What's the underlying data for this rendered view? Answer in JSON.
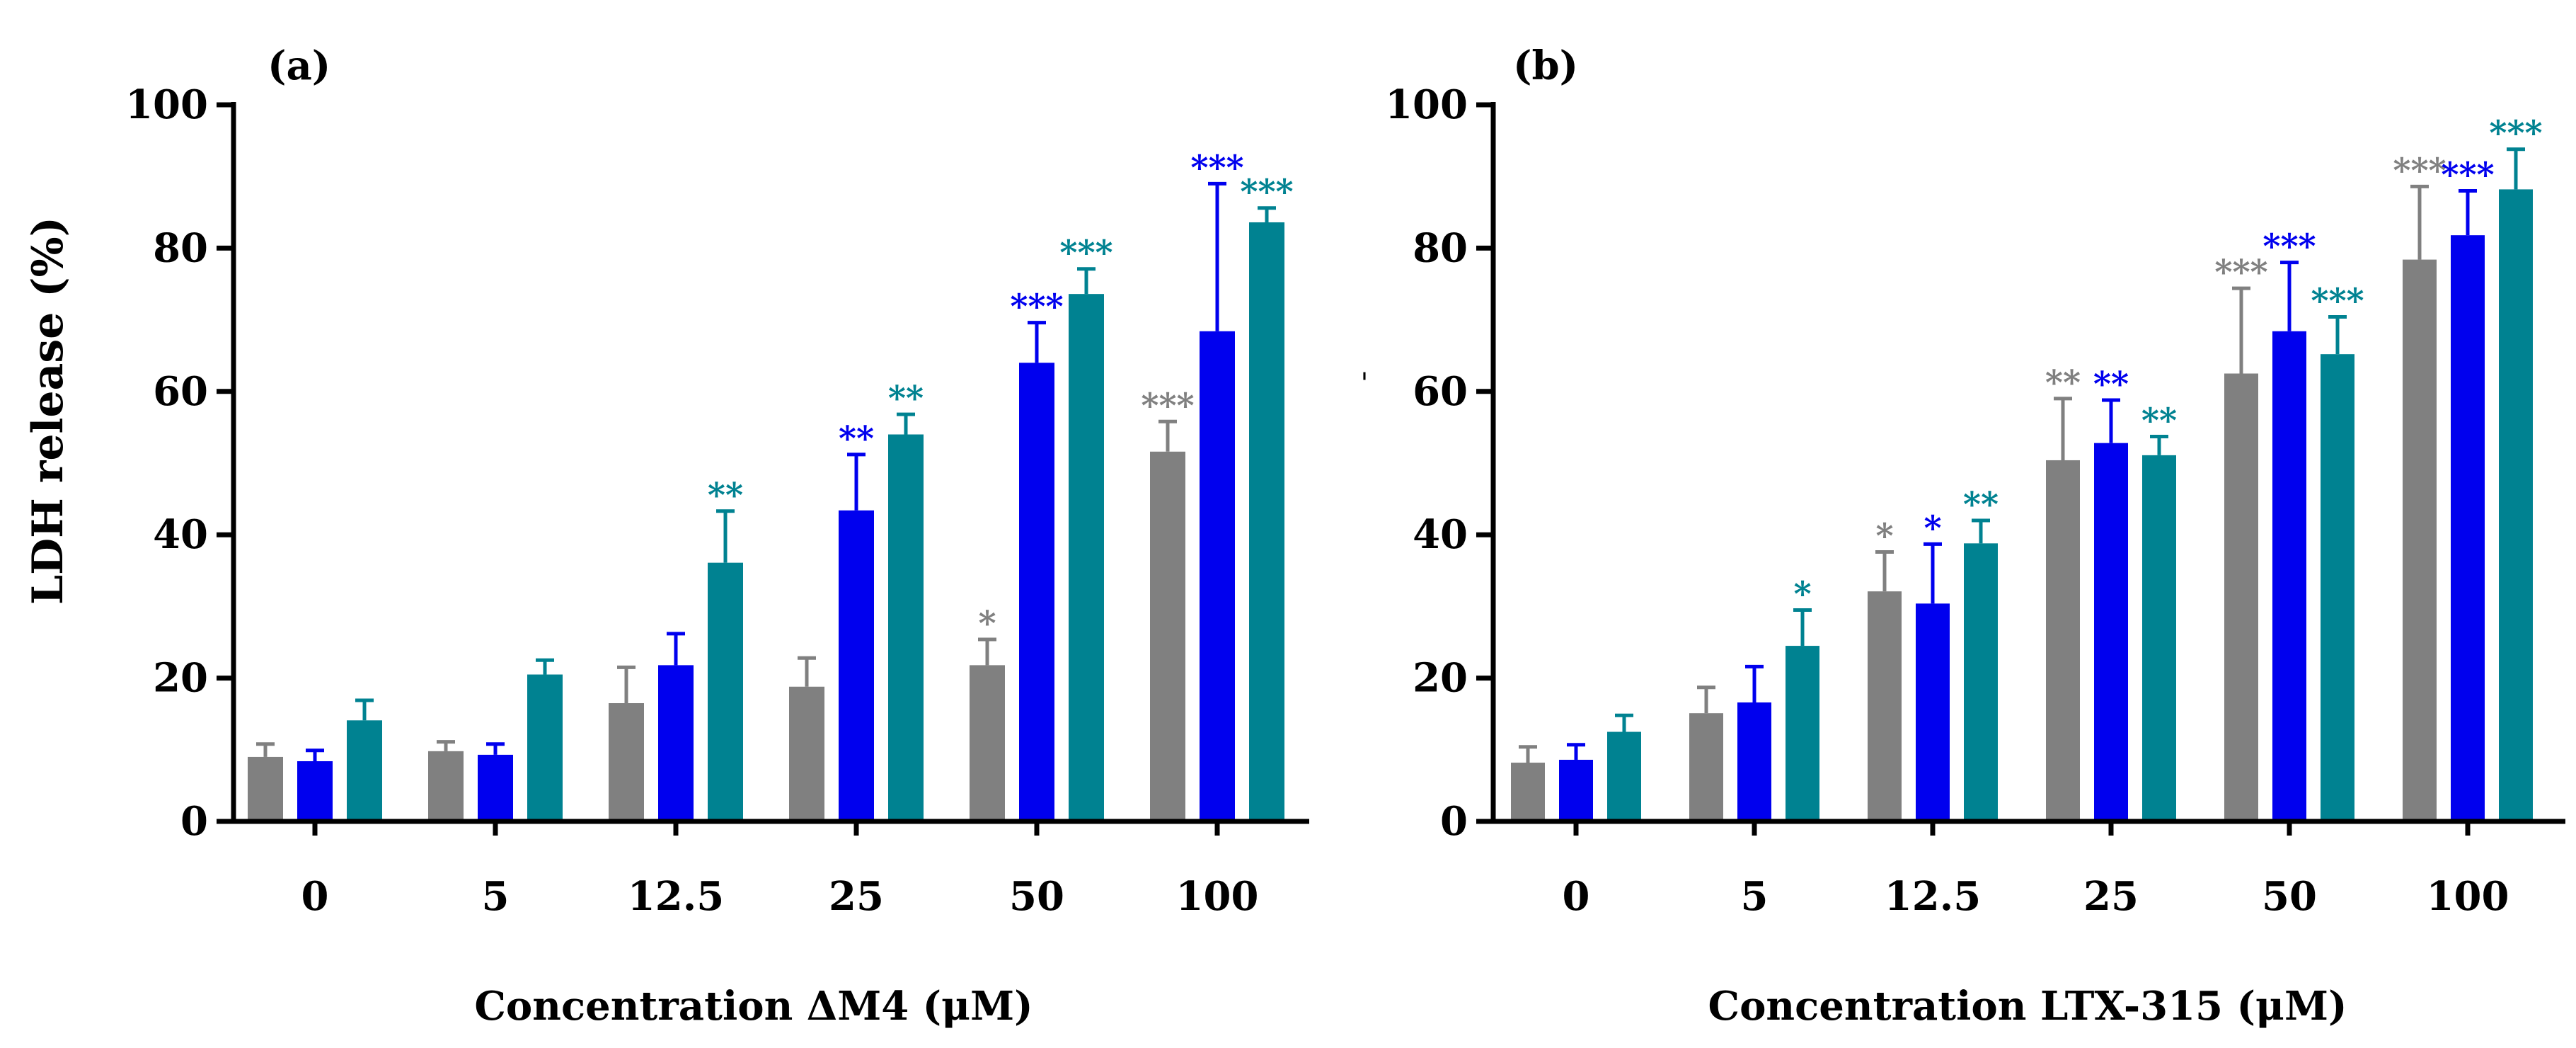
{
  "colors": {
    "series1": "#808080",
    "series2": "#0000EE",
    "series3": "#008291",
    "axis": "#000000"
  },
  "shared": {
    "ylabel": "LDH release (%)"
  },
  "chart_data": [
    {
      "type": "bar",
      "panel_label": "(a)",
      "xlabel": "Concentration ΔM4 (μM)",
      "ylabel": "LDH release (%)",
      "ylim": [
        0,
        100
      ],
      "yticks": [
        "0",
        "20",
        "40",
        "60",
        "80",
        "100"
      ],
      "categories": [
        "0",
        "5",
        "12.5",
        "25",
        "50",
        "100"
      ],
      "stray_marks": [],
      "series": [
        {
          "color_key": "series1",
          "values": [
            9,
            9.8,
            16.5,
            18.8,
            21.8,
            51.6
          ],
          "errors": [
            1.8,
            1.3,
            5,
            4,
            3.6,
            4.2
          ],
          "sig": [
            "",
            "",
            "",
            "",
            "*",
            "***"
          ]
        },
        {
          "color_key": "series2",
          "values": [
            8.4,
            9.3,
            21.8,
            43.4,
            64,
            68.4
          ],
          "errors": [
            1.5,
            1.5,
            4.4,
            7.8,
            5.6,
            20.6
          ],
          "sig": [
            "",
            "",
            "",
            "**",
            "***",
            "***"
          ]
        },
        {
          "color_key": "series3",
          "values": [
            14.1,
            20.5,
            36.1,
            54,
            73.6,
            83.6
          ],
          "errors": [
            2.8,
            2,
            7.2,
            2.8,
            3.5,
            2
          ],
          "sig": [
            "",
            "",
            "**",
            "**",
            "***",
            "***"
          ]
        }
      ]
    },
    {
      "type": "bar",
      "panel_label": "(b)",
      "xlabel": "Concentration LTX-315 (μM)",
      "ylabel": "",
      "ylim": [
        0,
        100
      ],
      "yticks": [
        "0",
        "20",
        "40",
        "60",
        "80",
        "100"
      ],
      "categories": [
        "0",
        "5",
        "12.5",
        "25",
        "50",
        "100"
      ],
      "stray_marks": [
        "'"
      ],
      "series": [
        {
          "color_key": "series1",
          "values": [
            8.2,
            15.1,
            32.1,
            50.4,
            62.5,
            78.4
          ],
          "errors": [
            2.2,
            3.6,
            5.5,
            8.6,
            11.9,
            10.2
          ],
          "sig": [
            "",
            "",
            "*",
            "**",
            "***",
            "***"
          ]
        },
        {
          "color_key": "series2",
          "values": [
            8.6,
            16.6,
            30.4,
            52.8,
            68.4,
            81.8
          ],
          "errors": [
            2.1,
            5,
            8.3,
            6,
            9.6,
            6.2
          ],
          "sig": [
            "",
            "",
            "*",
            "**",
            "***",
            "***"
          ]
        },
        {
          "color_key": "series3",
          "values": [
            12.5,
            24.5,
            38.8,
            51.1,
            65.2,
            88.2
          ],
          "errors": [
            2.3,
            5,
            3.2,
            2.6,
            5.2,
            5.6
          ],
          "sig": [
            "",
            "*",
            "**",
            "**",
            "***",
            "***"
          ]
        }
      ]
    }
  ]
}
